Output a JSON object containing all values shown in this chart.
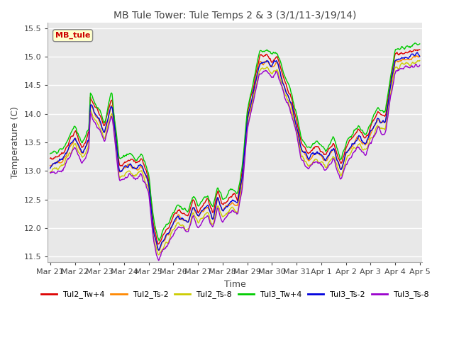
{
  "title": "MB Tule Tower: Tule Temps 2 & 3 (3/1/11-3/19/14)",
  "xlabel": "Time",
  "ylabel": "Temperature (C)",
  "ylim": [
    11.4,
    15.6
  ],
  "yticks": [
    11.5,
    12.0,
    12.5,
    13.0,
    13.5,
    14.0,
    14.5,
    15.0,
    15.5
  ],
  "xtick_labels": [
    "Mar 21",
    "Mar 22",
    "Mar 23",
    "Mar 24",
    "Mar 25",
    "Mar 26",
    "Mar 27",
    "Mar 28",
    "Mar 29",
    "Mar 30",
    "Mar 31",
    "Apr 1",
    "Apr 2",
    "Apr 3",
    "Apr 4",
    "Apr 5"
  ],
  "legend_labels": [
    "Tul2_Tw+4",
    "Tul2_Ts-2",
    "Tul2_Ts-8",
    "Tul3_Tw+4",
    "Tul3_Ts-2",
    "Tul3_Ts-8"
  ],
  "line_colors": [
    "#dd0000",
    "#ff8800",
    "#cccc00",
    "#00cc00",
    "#0000dd",
    "#9900cc"
  ],
  "line_widths": [
    1.0,
    1.0,
    1.0,
    1.0,
    1.0,
    1.0
  ],
  "inset_label": "MB_tule",
  "inset_color": "#cc0000",
  "inset_bg": "#ffffcc",
  "plot_bg": "#e8e8e8",
  "grid_color": "#ffffff",
  "title_fontsize": 10,
  "axis_fontsize": 9,
  "tick_fontsize": 8,
  "legend_fontsize": 8
}
